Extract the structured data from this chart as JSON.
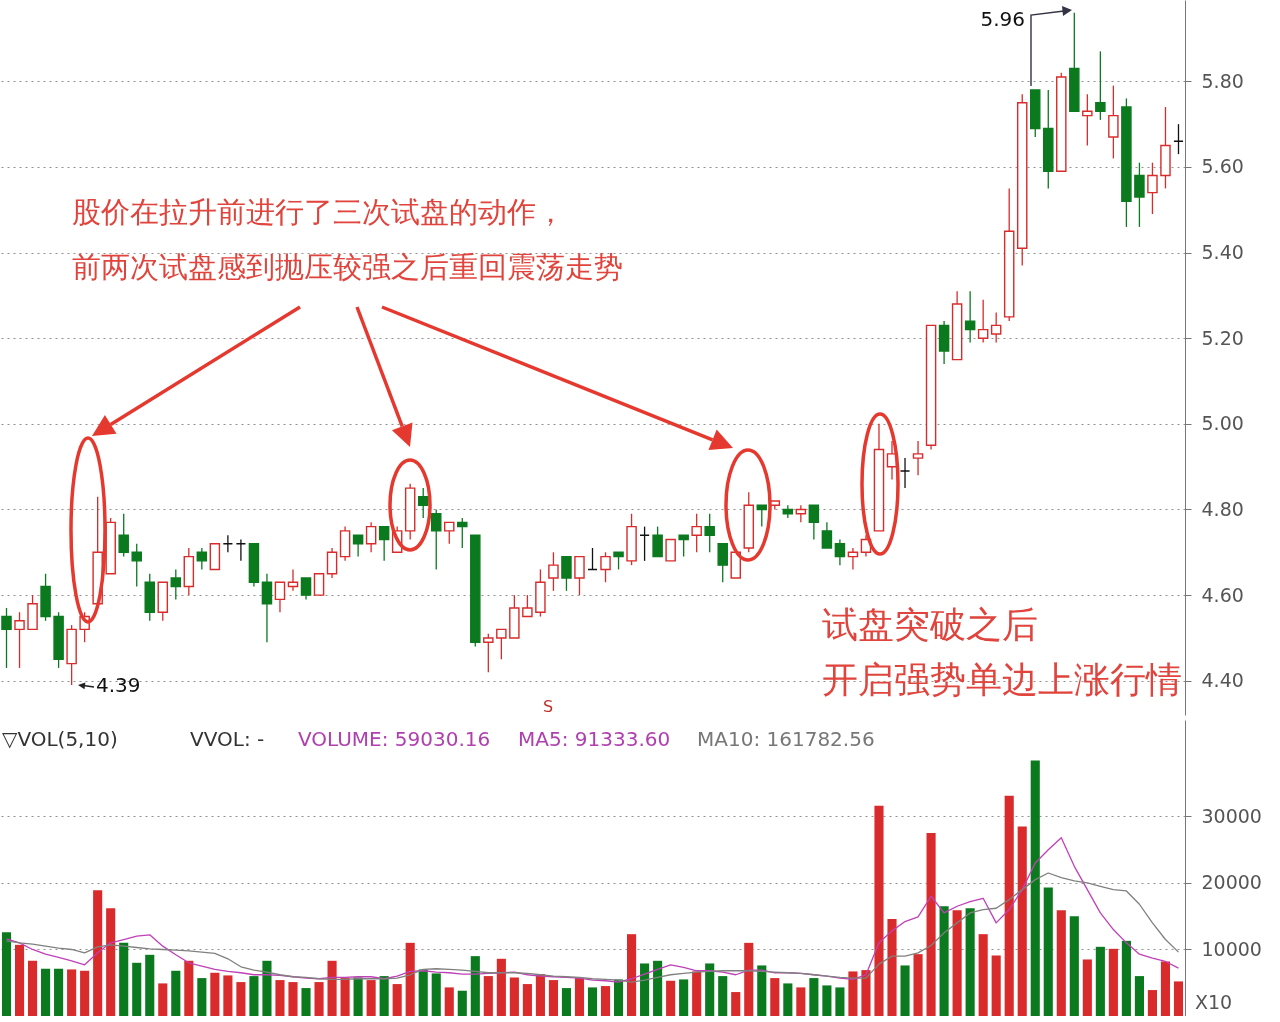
{
  "chart_data": [
    {
      "type": "candlestick",
      "categories": [
        null,
        null,
        null,
        null,
        null,
        null,
        null,
        null,
        null,
        null,
        null,
        null,
        null,
        null,
        null,
        null,
        null,
        null,
        null,
        null,
        null,
        null,
        null,
        null,
        null,
        null,
        null,
        null,
        null,
        null,
        null,
        null,
        null,
        null,
        null,
        null,
        null,
        null,
        null,
        null,
        null,
        null,
        null,
        null,
        null,
        null,
        null,
        null,
        null,
        null,
        null,
        null,
        null,
        null,
        null,
        null,
        null,
        null,
        null,
        null,
        null,
        null,
        null,
        null,
        null,
        null,
        null,
        null,
        null,
        null,
        null,
        null,
        null,
        null,
        null,
        null,
        null,
        null,
        null,
        null,
        null,
        null,
        null,
        null,
        null,
        null,
        null,
        null,
        null,
        null,
        null
      ],
      "ohlc": [
        [
          4.55,
          4.57,
          4.43,
          4.52
        ],
        [
          4.52,
          4.56,
          4.43,
          4.54
        ],
        [
          4.52,
          4.6,
          4.52,
          4.58
        ],
        [
          4.62,
          4.65,
          4.54,
          4.55
        ],
        [
          4.55,
          4.56,
          4.43,
          4.45
        ],
        [
          4.44,
          4.53,
          4.39,
          4.52
        ],
        [
          4.52,
          4.56,
          4.49,
          4.55
        ],
        [
          4.58,
          4.83,
          4.58,
          4.7
        ],
        [
          4.65,
          4.78,
          4.65,
          4.77
        ],
        [
          4.74,
          4.79,
          4.69,
          4.7
        ],
        [
          4.7,
          4.72,
          4.62,
          4.68
        ],
        [
          4.63,
          4.65,
          4.54,
          4.56
        ],
        [
          4.56,
          4.63,
          4.54,
          4.63
        ],
        [
          4.64,
          4.66,
          4.59,
          4.62
        ],
        [
          4.62,
          4.71,
          4.6,
          4.69
        ],
        [
          4.7,
          4.71,
          4.66,
          4.68
        ],
        [
          4.66,
          4.72,
          4.66,
          4.72
        ],
        [
          4.72,
          4.74,
          4.7,
          4.72
        ],
        [
          4.72,
          4.73,
          4.68,
          4.72
        ],
        [
          4.72,
          4.72,
          4.62,
          4.63
        ],
        [
          4.63,
          4.65,
          4.49,
          4.58
        ],
        [
          4.59,
          4.63,
          4.56,
          4.63
        ],
        [
          4.62,
          4.66,
          4.61,
          4.63
        ],
        [
          4.64,
          4.64,
          4.59,
          4.6
        ],
        [
          4.6,
          4.65,
          4.6,
          4.65
        ],
        [
          4.65,
          4.71,
          4.64,
          4.7
        ],
        [
          4.69,
          4.76,
          4.68,
          4.75
        ],
        [
          4.74,
          4.74,
          4.69,
          4.72
        ],
        [
          4.72,
          4.77,
          4.7,
          4.76
        ],
        [
          4.76,
          4.76,
          4.68,
          4.73
        ],
        [
          4.7,
          4.76,
          4.7,
          4.75
        ],
        [
          4.75,
          4.86,
          4.73,
          4.85
        ],
        [
          4.83,
          4.85,
          4.78,
          4.81
        ],
        [
          4.79,
          4.8,
          4.66,
          4.75
        ],
        [
          4.75,
          4.77,
          4.72,
          4.77
        ],
        [
          4.77,
          4.78,
          4.71,
          4.76
        ],
        [
          4.74,
          4.74,
          4.48,
          4.49
        ],
        [
          4.49,
          4.51,
          4.42,
          4.5
        ],
        [
          4.5,
          4.52,
          4.45,
          4.52
        ],
        [
          4.5,
          4.6,
          4.5,
          4.57
        ],
        [
          4.55,
          4.6,
          4.55,
          4.57
        ],
        [
          4.56,
          4.66,
          4.55,
          4.63
        ],
        [
          4.64,
          4.7,
          4.61,
          4.67
        ],
        [
          4.69,
          4.69,
          4.61,
          4.64
        ],
        [
          4.64,
          4.69,
          4.6,
          4.69
        ],
        [
          4.66,
          4.71,
          4.66,
          4.66
        ],
        [
          4.66,
          4.7,
          4.63,
          4.69
        ],
        [
          4.7,
          4.7,
          4.66,
          4.69
        ],
        [
          4.68,
          4.79,
          4.67,
          4.76
        ],
        [
          4.74,
          4.76,
          4.68,
          4.74
        ],
        [
          4.74,
          4.76,
          4.69,
          4.69
        ],
        [
          4.68,
          4.73,
          4.68,
          4.73
        ],
        [
          4.74,
          4.74,
          4.69,
          4.73
        ],
        [
          4.74,
          4.79,
          4.7,
          4.76
        ],
        [
          4.76,
          4.79,
          4.7,
          4.74
        ],
        [
          4.72,
          4.72,
          4.63,
          4.67
        ],
        [
          4.64,
          4.7,
          4.64,
          4.7
        ],
        [
          4.71,
          4.84,
          4.7,
          4.81
        ],
        [
          4.81,
          4.81,
          4.76,
          4.8
        ],
        [
          4.81,
          4.82,
          4.8,
          4.82
        ],
        [
          4.8,
          4.81,
          4.78,
          4.79
        ],
        [
          4.79,
          4.81,
          4.77,
          4.8
        ],
        [
          4.81,
          4.81,
          4.73,
          4.77
        ],
        [
          4.75,
          4.77,
          4.71,
          4.71
        ],
        [
          4.72,
          4.73,
          4.67,
          4.69
        ],
        [
          4.69,
          4.71,
          4.66,
          4.7
        ],
        [
          4.7,
          4.74,
          4.69,
          4.73
        ],
        [
          4.75,
          5.0,
          4.75,
          4.94
        ],
        [
          4.9,
          4.96,
          4.87,
          4.93
        ],
        [
          4.89,
          4.92,
          4.85,
          4.89
        ],
        [
          4.92,
          4.96,
          4.88,
          4.93
        ],
        [
          4.95,
          5.23,
          4.94,
          5.23
        ],
        [
          5.23,
          5.24,
          5.14,
          5.17
        ],
        [
          5.15,
          5.31,
          5.15,
          5.28
        ],
        [
          5.24,
          5.31,
          5.19,
          5.22
        ],
        [
          5.2,
          5.29,
          5.19,
          5.22
        ],
        [
          5.21,
          5.26,
          5.19,
          5.23
        ],
        [
          5.25,
          5.55,
          5.24,
          5.45
        ],
        [
          5.41,
          5.77,
          5.37,
          5.75
        ],
        [
          5.78,
          5.78,
          5.67,
          5.69
        ],
        [
          5.69,
          5.78,
          5.55,
          5.59
        ],
        [
          5.59,
          5.82,
          5.59,
          5.81
        ],
        [
          5.83,
          5.96,
          5.73,
          5.73
        ],
        [
          5.72,
          5.77,
          5.65,
          5.73
        ],
        [
          5.75,
          5.87,
          5.71,
          5.73
        ],
        [
          5.67,
          5.79,
          5.62,
          5.72
        ],
        [
          5.74,
          5.76,
          5.46,
          5.52
        ],
        [
          5.58,
          5.61,
          5.46,
          5.53
        ],
        [
          5.54,
          5.61,
          5.49,
          5.58
        ],
        [
          5.58,
          5.74,
          5.55,
          5.65
        ],
        [
          5.66,
          5.7,
          5.63,
          5.66
        ]
      ],
      "colors": [
        "#0b7a1f",
        "#d92b2b",
        "#d92b2b",
        "#0b7a1f",
        "#0b7a1f",
        "#d92b2b",
        "#d92b2b",
        "#d92b2b",
        "#d92b2b",
        "#0b7a1f",
        "#0b7a1f",
        "#0b7a1f",
        "#d92b2b",
        "#0b7a1f",
        "#d92b2b",
        "#0b7a1f",
        "#d92b2b",
        "#111111",
        "#111111",
        "#0b7a1f",
        "#0b7a1f",
        "#d92b2b",
        "#d92b2b",
        "#0b7a1f",
        "#d92b2b",
        "#d92b2b",
        "#d92b2b",
        "#0b7a1f",
        "#d92b2b",
        "#0b7a1f",
        "#d92b2b",
        "#d92b2b",
        "#0b7a1f",
        "#0b7a1f",
        "#d92b2b",
        "#0b7a1f",
        "#0b7a1f",
        "#d92b2b",
        "#d92b2b",
        "#d92b2b",
        "#d92b2b",
        "#d92b2b",
        "#d92b2b",
        "#0b7a1f",
        "#d92b2b",
        "#111111",
        "#d92b2b",
        "#0b7a1f",
        "#d92b2b",
        "#111111",
        "#0b7a1f",
        "#d92b2b",
        "#0b7a1f",
        "#d92b2b",
        "#0b7a1f",
        "#0b7a1f",
        "#d92b2b",
        "#d92b2b",
        "#0b7a1f",
        "#d92b2b",
        "#0b7a1f",
        "#d92b2b",
        "#0b7a1f",
        "#0b7a1f",
        "#0b7a1f",
        "#d92b2b",
        "#d92b2b",
        "#d92b2b",
        "#d92b2b",
        "#111111",
        "#d92b2b",
        "#d92b2b",
        "#0b7a1f",
        "#d92b2b",
        "#0b7a1f",
        "#d92b2b",
        "#d92b2b",
        "#d92b2b",
        "#d92b2b",
        "#0b7a1f",
        "#0b7a1f",
        "#d92b2b",
        "#0b7a1f",
        "#d92b2b",
        "#0b7a1f",
        "#d92b2b",
        "#0b7a1f",
        "#0b7a1f",
        "#d92b2b",
        "#d92b2b",
        "#111111"
      ],
      "ylim": [
        4.32,
        5.99
      ],
      "yticks": [
        {
          "value": 4.4,
          "label": "4.40"
        },
        {
          "value": 4.6,
          "label": "4.60"
        },
        {
          "value": 4.8,
          "label": "4.80"
        },
        {
          "value": 5.0,
          "label": "5.00"
        },
        {
          "value": 5.2,
          "label": "5.20"
        },
        {
          "value": 5.4,
          "label": "5.40"
        },
        {
          "value": 5.6,
          "label": "5.60"
        },
        {
          "value": 5.8,
          "label": "5.80"
        }
      ],
      "grid": "y",
      "annotations": [
        "股价在拉升前进行了三次试盘的动作，",
        "前两次试盘感到抛压较强之后重回震荡走势",
        "试盘突破之后",
        "开启强势单边上涨行情",
        "S",
        "4.39",
        "5.96"
      ]
    },
    {
      "type": "bar",
      "categories": [
        null,
        null,
        null,
        null,
        null,
        null,
        null,
        null,
        null,
        null,
        null,
        null,
        null,
        null,
        null,
        null,
        null,
        null,
        null,
        null,
        null,
        null,
        null,
        null,
        null,
        null,
        null,
        null,
        null,
        null,
        null,
        null,
        null,
        null,
        null,
        null,
        null,
        null,
        null,
        null,
        null,
        null,
        null,
        null,
        null,
        null,
        null,
        null,
        null,
        null,
        null,
        null,
        null,
        null,
        null,
        null,
        null,
        null,
        null,
        null,
        null,
        null,
        null,
        null,
        null,
        null,
        null,
        null,
        null,
        null,
        null,
        null,
        null,
        null,
        null,
        null,
        null,
        null,
        null,
        null,
        null,
        null,
        null,
        null,
        null,
        null,
        null,
        null,
        null,
        null,
        null
      ],
      "series": [
        {
          "type": "bar",
          "values": [
            12600,
            10700,
            8300,
            7100,
            7100,
            7000,
            6800,
            18900,
            16200,
            11000,
            8000,
            9200,
            4900,
            6800,
            8300,
            5700,
            6500,
            6100,
            5100,
            6000,
            8300,
            5400,
            5100,
            4200,
            5100,
            8300,
            5700,
            5800,
            5400,
            6000,
            4800,
            11000,
            7000,
            6400,
            4300,
            3800,
            9000,
            6000,
            8600,
            5800,
            4800,
            6300,
            5400,
            4200,
            5700,
            4300,
            4500,
            5500,
            12300,
            7900,
            8300,
            5300,
            5500,
            6700,
            7900,
            6000,
            3600,
            11000,
            7600,
            5700,
            4900,
            4300,
            5700,
            4600,
            4300,
            6700,
            6900,
            31600,
            14600,
            7600,
            9300,
            27500,
            16500,
            15900,
            16200,
            12300,
            9100,
            33100,
            28500,
            38400,
            19300,
            15900,
            15000,
            8500,
            10400,
            10100,
            11300,
            6000,
            3900,
            8200,
            5200
          ],
          "colors": [
            "#0b7a1f",
            "#d92b2b",
            "#d92b2b",
            "#0b7a1f",
            "#0b7a1f",
            "#d92b2b",
            "#d92b2b",
            "#d92b2b",
            "#d92b2b",
            "#0b7a1f",
            "#0b7a1f",
            "#0b7a1f",
            "#d92b2b",
            "#0b7a1f",
            "#d92b2b",
            "#0b7a1f",
            "#d92b2b",
            "#d92b2b",
            "#d92b2b",
            "#0b7a1f",
            "#0b7a1f",
            "#d92b2b",
            "#d92b2b",
            "#0b7a1f",
            "#d92b2b",
            "#d92b2b",
            "#d92b2b",
            "#0b7a1f",
            "#d92b2b",
            "#0b7a1f",
            "#d92b2b",
            "#d92b2b",
            "#0b7a1f",
            "#0b7a1f",
            "#d92b2b",
            "#0b7a1f",
            "#0b7a1f",
            "#d92b2b",
            "#d92b2b",
            "#d92b2b",
            "#d92b2b",
            "#d92b2b",
            "#d92b2b",
            "#0b7a1f",
            "#d92b2b",
            "#0b7a1f",
            "#d92b2b",
            "#0b7a1f",
            "#d92b2b",
            "#0b7a1f",
            "#0b7a1f",
            "#d92b2b",
            "#0b7a1f",
            "#d92b2b",
            "#0b7a1f",
            "#0b7a1f",
            "#d92b2b",
            "#d92b2b",
            "#0b7a1f",
            "#d92b2b",
            "#0b7a1f",
            "#d92b2b",
            "#0b7a1f",
            "#0b7a1f",
            "#0b7a1f",
            "#d92b2b",
            "#d92b2b",
            "#d92b2b",
            "#d92b2b",
            "#0b7a1f",
            "#d92b2b",
            "#d92b2b",
            "#0b7a1f",
            "#d92b2b",
            "#0b7a1f",
            "#d92b2b",
            "#d92b2b",
            "#d92b2b",
            "#d92b2b",
            "#0b7a1f",
            "#0b7a1f",
            "#d92b2b",
            "#0b7a1f",
            "#d92b2b",
            "#0b7a1f",
            "#d92b2b",
            "#0b7a1f",
            "#0b7a1f",
            "#d92b2b",
            "#d92b2b",
            "#d92b2b"
          ]
        },
        {
          "type": "line",
          "color": "#c040b8",
          "values": [
            11600,
            11000,
            10000,
            9300,
            8800,
            8300,
            7700,
            9500,
            11000,
            11500,
            12000,
            12200,
            10500,
            9200,
            8000,
            7500,
            7000,
            6700,
            6500,
            6200,
            6200,
            6100,
            5900,
            5700,
            5600,
            5800,
            5800,
            5900,
            5900,
            5600,
            6000,
            6700,
            6800,
            6600,
            6500,
            6300,
            6300,
            6400,
            6500,
            6600,
            6200,
            6000,
            5900,
            5800,
            5700,
            5400,
            5300,
            5100,
            5600,
            6300,
            7000,
            7700,
            7300,
            6800,
            6800,
            6600,
            6200,
            6900,
            6900,
            6500,
            6500,
            6400,
            6200,
            6000,
            5700,
            5500,
            6200,
            11000,
            12800,
            14200,
            14900,
            18000,
            15500,
            16500,
            17200,
            17700,
            14000,
            16000,
            19000,
            23000,
            25000,
            26800,
            22500,
            19000,
            15500,
            13000,
            11000,
            9300,
            8700,
            8200,
            7200
          ]
        },
        {
          "type": "line",
          "color": "#808080",
          "values": [
            11300,
            11000,
            10800,
            10500,
            10200,
            10000,
            9500,
            10400,
            10700,
            10500,
            10300,
            10100,
            10000,
            9900,
            9800,
            9600,
            9400,
            8600,
            7400,
            6900,
            6600,
            6200,
            5900,
            5800,
            5600,
            5500,
            5500,
            5600,
            5600,
            5600,
            5700,
            6200,
            7000,
            7100,
            7000,
            6900,
            6700,
            6500,
            6500,
            6500,
            6400,
            6200,
            6000,
            5900,
            5800,
            5600,
            5500,
            5400,
            5100,
            5400,
            5800,
            6200,
            6400,
            6600,
            6700,
            6800,
            6800,
            6800,
            6700,
            6600,
            6500,
            6400,
            6200,
            6000,
            5800,
            5700,
            5700,
            7800,
            9000,
            9000,
            9500,
            10600,
            12500,
            14000,
            15500,
            16000,
            16200,
            17500,
            19000,
            20500,
            21500,
            20800,
            20300,
            20000,
            19500,
            19000,
            18800,
            16800,
            14000,
            11500,
            9600
          ]
        }
      ],
      "ylim": [
        0,
        44500
      ],
      "yticks": [
        10000,
        20000,
        30000
      ],
      "grid": "y",
      "annotations": [
        "▽VOL(5,10)",
        "VVOL: -",
        "VOLUME: 59030.16",
        "MA5: 91333.60",
        "MA10: 161782.56",
        "X10"
      ]
    }
  ]
}
